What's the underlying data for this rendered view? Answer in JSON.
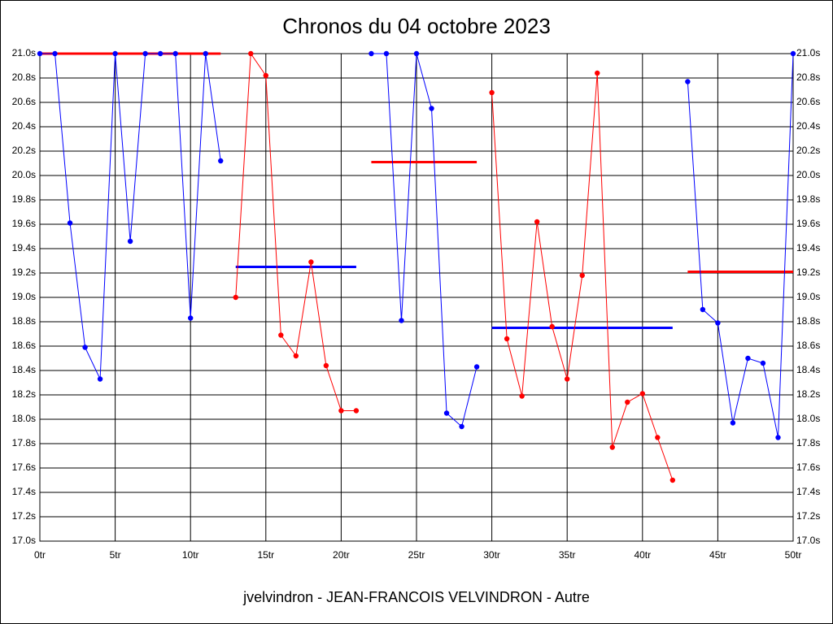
{
  "chart_data": {
    "type": "line",
    "title": "Chronos du 04 octobre 2023",
    "x_label": "jvelvindron - JEAN-FRANCOIS VELVINDRON - Autre",
    "xlim": [
      0,
      50
    ],
    "ylim": [
      17.0,
      21.0
    ],
    "grid": true,
    "xticks": [
      {
        "value": 0,
        "label": "0tr"
      },
      {
        "value": 5,
        "label": "5tr"
      },
      {
        "value": 10,
        "label": "10tr"
      },
      {
        "value": 15,
        "label": "15tr"
      },
      {
        "value": 20,
        "label": "20tr"
      },
      {
        "value": 25,
        "label": "25tr"
      },
      {
        "value": 30,
        "label": "30tr"
      },
      {
        "value": 35,
        "label": "35tr"
      },
      {
        "value": 40,
        "label": "40tr"
      },
      {
        "value": 45,
        "label": "45tr"
      },
      {
        "value": 50,
        "label": "50tr"
      }
    ],
    "yticks": [
      {
        "value": 17.0,
        "label": "17.0s"
      },
      {
        "value": 17.2,
        "label": "17.2s"
      },
      {
        "value": 17.4,
        "label": "17.4s"
      },
      {
        "value": 17.6,
        "label": "17.6s"
      },
      {
        "value": 17.8,
        "label": "17.8s"
      },
      {
        "value": 18.0,
        "label": "18.0s"
      },
      {
        "value": 18.2,
        "label": "18.2s"
      },
      {
        "value": 18.4,
        "label": "18.4s"
      },
      {
        "value": 18.6,
        "label": "18.6s"
      },
      {
        "value": 18.8,
        "label": "18.8s"
      },
      {
        "value": 19.0,
        "label": "19.0s"
      },
      {
        "value": 19.2,
        "label": "19.2s"
      },
      {
        "value": 19.4,
        "label": "19.4s"
      },
      {
        "value": 19.6,
        "label": "19.6s"
      },
      {
        "value": 19.8,
        "label": "19.8s"
      },
      {
        "value": 20.0,
        "label": "20.0s"
      },
      {
        "value": 20.2,
        "label": "20.2s"
      },
      {
        "value": 20.4,
        "label": "20.4s"
      },
      {
        "value": 20.6,
        "label": "20.6s"
      },
      {
        "value": 20.8,
        "label": "20.8s"
      },
      {
        "value": 21.0,
        "label": "21.0s"
      }
    ],
    "series": [
      {
        "color": "#0000ff",
        "x": [
          0,
          1,
          2,
          3,
          4,
          5,
          6,
          7,
          8,
          9,
          10,
          11,
          12
        ],
        "values": [
          21.0,
          21.0,
          19.61,
          18.59,
          18.33,
          21.0,
          19.46,
          21.0,
          21.0,
          21.0,
          18.83,
          21.0,
          20.12
        ]
      },
      {
        "color": "#ff0000",
        "x": [
          13,
          14,
          15,
          16,
          17,
          18,
          19,
          20,
          21
        ],
        "values": [
          19.0,
          21.0,
          20.82,
          18.69,
          18.52,
          19.29,
          18.44,
          18.07,
          18.07
        ]
      },
      {
        "color": "#0000ff",
        "x": [
          22,
          23,
          24,
          25,
          26,
          27,
          28,
          29
        ],
        "values": [
          21.0,
          21.0,
          18.81,
          21.0,
          20.55,
          18.05,
          17.94,
          18.43
        ]
      },
      {
        "color": "#ff0000",
        "x": [
          30,
          31,
          32,
          33,
          34,
          35,
          36,
          37,
          38,
          39,
          40,
          41,
          42
        ],
        "values": [
          20.68,
          18.66,
          18.19,
          19.62,
          18.76,
          18.33,
          19.18,
          20.84,
          17.77,
          18.14,
          18.21,
          17.85,
          17.5
        ]
      },
      {
        "color": "#0000ff",
        "x": [
          43,
          44,
          45,
          46,
          47,
          48,
          49,
          50
        ],
        "values": [
          20.77,
          18.9,
          18.79,
          17.97,
          18.5,
          18.46,
          17.85,
          21.0
        ]
      }
    ],
    "mean_lines": [
      {
        "color": "#ff0000",
        "x": [
          0,
          12
        ],
        "values": [
          21.0,
          21.0
        ]
      },
      {
        "color": "#0000ff",
        "x": [
          13,
          21
        ],
        "values": [
          19.25,
          19.25
        ]
      },
      {
        "color": "#ff0000",
        "x": [
          22,
          29
        ],
        "values": [
          20.11,
          20.11
        ]
      },
      {
        "color": "#0000ff",
        "x": [
          30,
          42
        ],
        "values": [
          18.75,
          18.75
        ]
      },
      {
        "color": "#ff0000",
        "x": [
          43,
          50
        ],
        "values": [
          19.21,
          19.21
        ]
      }
    ]
  }
}
